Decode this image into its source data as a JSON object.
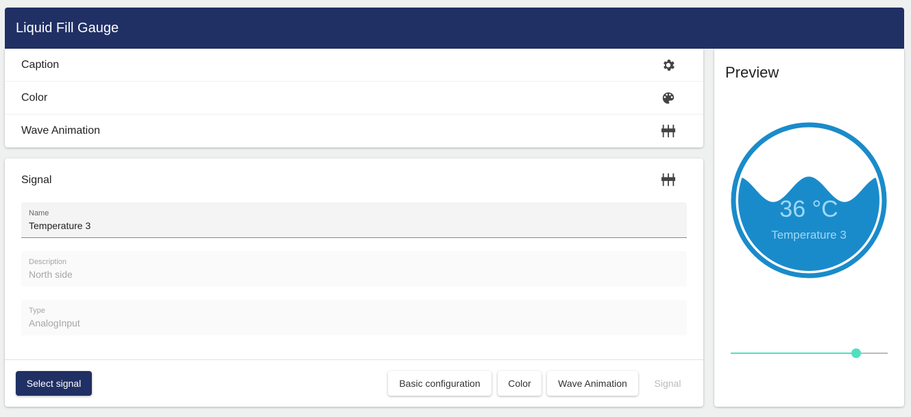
{
  "header": {
    "title": "Liquid Fill Gauge"
  },
  "menu": [
    {
      "label": "Caption",
      "icon": "gear-icon"
    },
    {
      "label": "Color",
      "icon": "palette-icon"
    },
    {
      "label": "Wave Animation",
      "icon": "tune-icon"
    }
  ],
  "signal": {
    "title": "Signal",
    "icon": "tune-icon",
    "fields": [
      {
        "label": "Name",
        "value": "Temperature 3"
      },
      {
        "label": "Description",
        "value": "North side"
      },
      {
        "label": "Type",
        "value": "AnalogInput"
      }
    ],
    "select_button": "Select signal",
    "steps": [
      "Basic configuration",
      "Color",
      "Wave Animation",
      "Signal"
    ]
  },
  "preview": {
    "title": "Preview",
    "value_text": "36 °C",
    "caption": "Temperature 3",
    "slider_fraction": 0.8,
    "colors": {
      "gauge": "#1a8bca",
      "text": "#9fd8f5",
      "slider": "#4fe0c0"
    }
  }
}
